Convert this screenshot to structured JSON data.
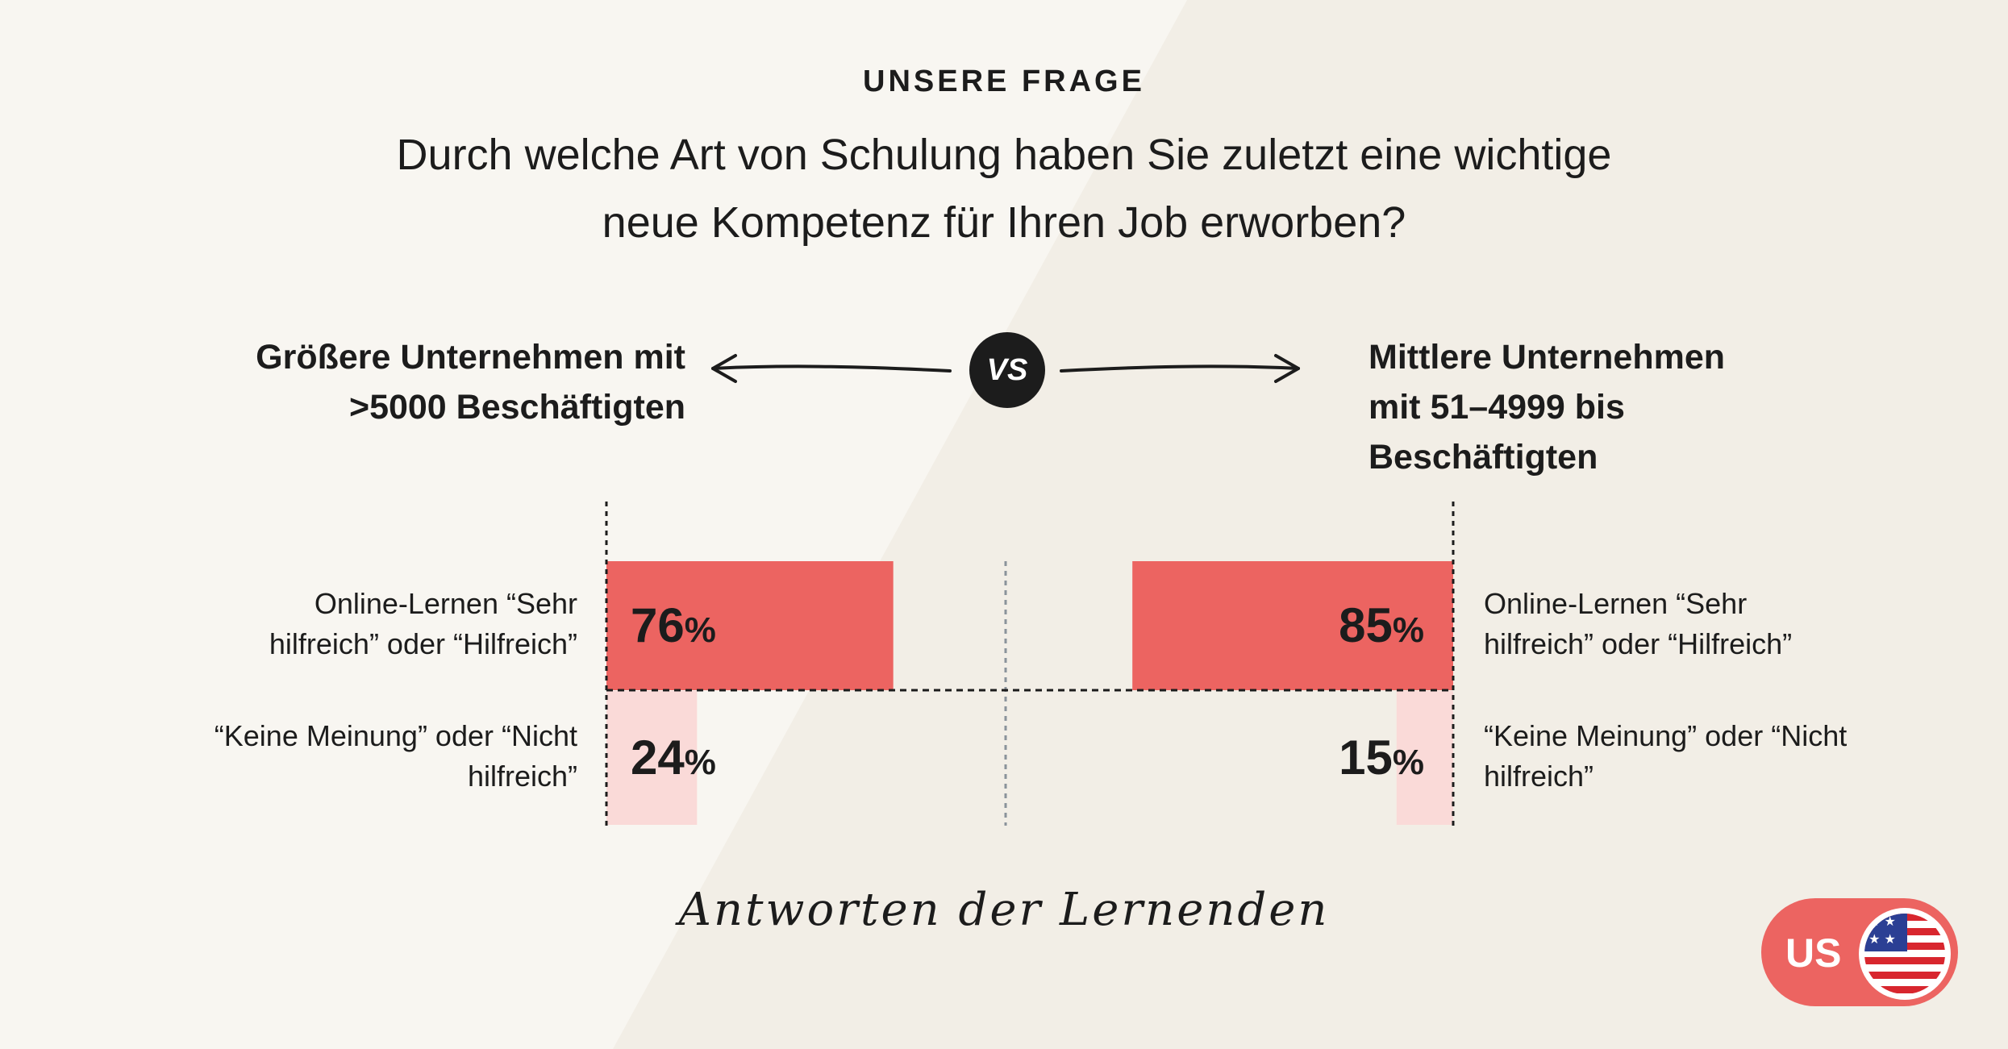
{
  "header": {
    "kicker": "UNSERE FRAGE",
    "question_line1": "Durch welche Art von Schulung haben Sie zuletzt eine wichtige",
    "question_line2": "neue Kompetenz für Ihren Job erworben?"
  },
  "comparison": {
    "left_line1": "Größere Unternehmen mit",
    "left_line2": ">5000 Beschäftigten",
    "right_line1": "Mittlere Unternehmen",
    "right_line2": "mit 51–4999 bis",
    "right_line3": "Beschäftigten",
    "vs_label": "VS",
    "arrow_icon": "arrow-icon"
  },
  "chart_data": {
    "type": "bar",
    "orientation": "horizontal-diverging",
    "unit": "%",
    "categories": [
      "Online-Lernen “Sehr hilfreich” oder “Hilfreich”",
      "“Keine Meinung” oder “Nicht hilfreich”"
    ],
    "category_lines": [
      [
        "Online-Lernen “Sehr",
        "hilfreich” oder “Hilfreich”"
      ],
      [
        "“Keine Meinung” oder “Nicht",
        "hilfreich”"
      ]
    ],
    "series": [
      {
        "group": "left",
        "values": [
          76,
          24
        ]
      },
      {
        "group": "right",
        "values": [
          85,
          15
        ]
      }
    ],
    "xlim": [
      0,
      100
    ],
    "colors": [
      "#ec6461",
      "#fadad8"
    ],
    "grid": false
  },
  "footer": {
    "caption": "Antworten der Lernenden"
  },
  "region": {
    "code": "US",
    "flag_icon": "us-flag-icon"
  }
}
